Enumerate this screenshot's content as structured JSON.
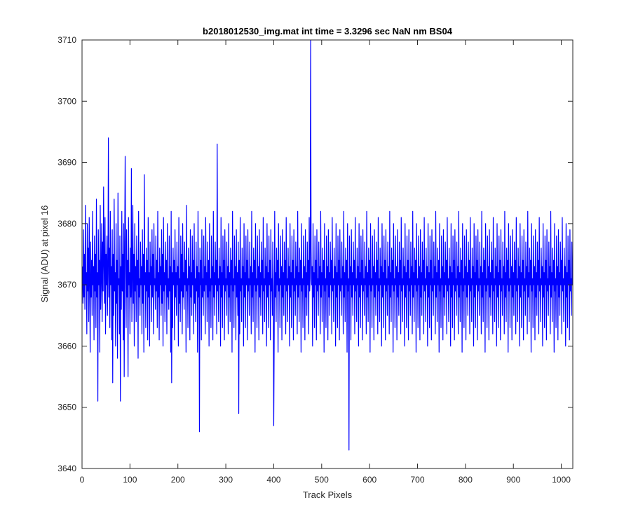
{
  "chart_data": {
    "type": "line",
    "title": "b2018012530_img.mat int time = 3.3296 sec  NaN nm BS04",
    "xlabel": "Track Pixels",
    "ylabel": "Signal (ADU) at pixel 16",
    "xlim": [
      0,
      1024
    ],
    "ylim": [
      3640,
      3710
    ],
    "x_ticks": [
      0,
      100,
      200,
      300,
      400,
      500,
      600,
      700,
      800,
      900,
      1000
    ],
    "y_ticks": [
      3640,
      3650,
      3660,
      3670,
      3680,
      3690,
      3700,
      3710
    ],
    "grid": false,
    "legend": "none",
    "series_color": "#0000ff",
    "series": [
      {
        "x_start": 1,
        "x_step": 1,
        "values": [
          3673,
          3667,
          3679,
          3668,
          3675,
          3666,
          3683,
          3670,
          3672,
          3662,
          3680,
          3669,
          3676,
          3664,
          3681,
          3671,
          3659,
          3677,
          3668,
          3674,
          3665,
          3682,
          3670,
          3673,
          3661,
          3678,
          3669,
          3675,
          3663,
          3684,
          3668,
          3672,
          3651,
          3679,
          3670,
          3674,
          3659,
          3683,
          3666,
          3671,
          3680,
          3664,
          3677,
          3669,
          3686,
          3673,
          3667,
          3681,
          3662,
          3675,
          3670,
          3678,
          3665,
          3672,
          3694,
          3668,
          3676,
          3663,
          3682,
          3670,
          3673,
          3661,
          3679,
          3654,
          3675,
          3665,
          3684,
          3669,
          3672,
          3660,
          3680,
          3667,
          3674,
          3658,
          3685,
          3670,
          3671,
          3662,
          3678,
          3651,
          3673,
          3666,
          3682,
          3669,
          3675,
          3661,
          3680,
          3655,
          3677,
          3691,
          3672,
          3663,
          3679,
          3668,
          3674,
          3655,
          3681,
          3670,
          3672,
          3662,
          3676,
          3668,
          3689,
          3664,
          3671,
          3683,
          3667,
          3675,
          3660,
          3680,
          3669,
          3673,
          3664,
          3678,
          3670,
          3674,
          3658,
          3682,
          3668,
          3671,
          3665,
          3677,
          3670,
          3673,
          3662,
          3679,
          3667,
          3675,
          3659,
          3688,
          3670,
          3672,
          3663,
          3676,
          3669,
          3674,
          3661,
          3681,
          3668,
          3672,
          3660,
          3677,
          3670,
          3673,
          3664,
          3679,
          3668,
          3675,
          3662,
          3680,
          3670,
          3671,
          3666,
          3678,
          3669,
          3674,
          3663,
          3682,
          3668,
          3672,
          3661,
          3676,
          3670,
          3673,
          3665,
          3679,
          3667,
          3675,
          3660,
          3681,
          3669,
          3672,
          3664,
          3677,
          3670,
          3674,
          3662,
          3680,
          3668,
          3671,
          3666,
          3678,
          3669,
          3673,
          3659,
          3682,
          3654,
          3672,
          3663,
          3676,
          3670,
          3674,
          3661,
          3679,
          3668,
          3672,
          3665,
          3677,
          3670,
          3673,
          3660,
          3681,
          3667,
          3671,
          3664,
          3678,
          3669,
          3675,
          3662,
          3680,
          3668,
          3672,
          3666,
          3677,
          3670,
          3674,
          3659,
          3683,
          3669,
          3671,
          3663,
          3676,
          3670,
          3673,
          3661,
          3679,
          3668,
          3672,
          3665,
          3678,
          3670,
          3674,
          3662,
          3680,
          3667,
          3671,
          3664,
          3677,
          3669,
          3673,
          3659,
          3682,
          3668,
          3672,
          3646,
          3676,
          3670,
          3674,
          3661,
          3679,
          3668,
          3671,
          3665,
          3678,
          3669,
          3673,
          3662,
          3681,
          3670,
          3672,
          3664,
          3677,
          3668,
          3674,
          3660,
          3680,
          3669,
          3671,
          3663,
          3678,
          3670,
          3673,
          3661,
          3682,
          3668,
          3672,
          3665,
          3677,
          3670,
          3674,
          3662,
          3693,
          3669,
          3671,
          3664,
          3676,
          3670,
          3673,
          3660,
          3681,
          3668,
          3672,
          3663,
          3678,
          3670,
          3674,
          3661,
          3679,
          3669,
          3671,
          3665,
          3677,
          3670,
          3673,
          3662,
          3680,
          3668,
          3672,
          3664,
          3676,
          3670,
          3674,
          3659,
          3682,
          3669,
          3671,
          3663,
          3678,
          3670,
          3673,
          3661,
          3679,
          3668,
          3672,
          3665,
          3677,
          3649,
          3674,
          3662,
          3681,
          3669,
          3671,
          3664,
          3676,
          3670,
          3673,
          3660,
          3680,
          3668,
          3672,
          3663,
          3678,
          3670,
          3674,
          3661,
          3679,
          3669,
          3671,
          3665,
          3677,
          3670,
          3673,
          3662,
          3682,
          3668,
          3672,
          3664,
          3676,
          3670,
          3674,
          3659,
          3680,
          3669,
          3671,
          3663,
          3678,
          3670,
          3673,
          3661,
          3679,
          3668,
          3672,
          3665,
          3677,
          3670,
          3674,
          3662,
          3681,
          3669,
          3671,
          3664,
          3676,
          3670,
          3673,
          3660,
          3680,
          3668,
          3672,
          3663,
          3678,
          3670,
          3674,
          3661,
          3679,
          3669,
          3671,
          3665,
          3677,
          3670,
          3647,
          3662,
          3682,
          3668,
          3672,
          3664,
          3676,
          3670,
          3674,
          3659,
          3680,
          3669,
          3671,
          3663,
          3678,
          3670,
          3673,
          3661,
          3679,
          3668,
          3672,
          3665,
          3677,
          3670,
          3674,
          3662,
          3681,
          3669,
          3671,
          3664,
          3676,
          3670,
          3673,
          3660,
          3680,
          3668,
          3672,
          3663,
          3678,
          3670,
          3674,
          3661,
          3679,
          3669,
          3671,
          3665,
          3677,
          3670,
          3673,
          3662,
          3682,
          3668,
          3672,
          3664,
          3676,
          3670,
          3674,
          3659,
          3680,
          3669,
          3671,
          3663,
          3678,
          3670,
          3673,
          3661,
          3679,
          3668,
          3672,
          3665,
          3677,
          3670,
          3674,
          3662,
          3681,
          3669,
          3671,
          3710,
          3676,
          3670,
          3673,
          3660,
          3680,
          3668,
          3672,
          3663,
          3678,
          3670,
          3674,
          3661,
          3679,
          3669,
          3671,
          3665,
          3677,
          3670,
          3673,
          3662,
          3682,
          3668,
          3672,
          3664,
          3676,
          3670,
          3674,
          3659,
          3680,
          3669,
          3671,
          3663,
          3678,
          3670,
          3673,
          3661,
          3679,
          3668,
          3672,
          3665,
          3677,
          3670,
          3674,
          3662,
          3681,
          3669,
          3671,
          3664,
          3676,
          3670,
          3673,
          3660,
          3680,
          3668,
          3672,
          3663,
          3678,
          3670,
          3674,
          3661,
          3679,
          3669,
          3671,
          3665,
          3677,
          3670,
          3673,
          3662,
          3682,
          3668,
          3672,
          3664,
          3676,
          3670,
          3674,
          3659,
          3680,
          3669,
          3671,
          3643,
          3678,
          3670,
          3673,
          3661,
          3679,
          3668,
          3672,
          3665,
          3677,
          3670,
          3674,
          3662,
          3681,
          3669,
          3671,
          3664,
          3676,
          3670,
          3673,
          3660,
          3680,
          3668,
          3672,
          3663,
          3678,
          3670,
          3674,
          3661,
          3679,
          3669,
          3671,
          3665,
          3677,
          3670,
          3673,
          3662,
          3682,
          3668,
          3672,
          3664,
          3676,
          3670,
          3674,
          3659,
          3680,
          3669,
          3671,
          3663,
          3678,
          3670,
          3673,
          3661,
          3679,
          3668,
          3672,
          3665,
          3677,
          3670,
          3674,
          3662,
          3681,
          3669,
          3671,
          3664,
          3676,
          3670,
          3673,
          3660,
          3680,
          3668,
          3672,
          3663,
          3678,
          3670,
          3674,
          3661,
          3679,
          3669,
          3671,
          3665,
          3677,
          3670,
          3673,
          3662,
          3682,
          3668,
          3672,
          3664,
          3676,
          3670,
          3674,
          3659,
          3680,
          3669,
          3671,
          3663,
          3678,
          3670,
          3673,
          3661,
          3679,
          3668,
          3672,
          3665,
          3677,
          3670,
          3674,
          3662,
          3681,
          3669,
          3671,
          3664,
          3676,
          3670,
          3673,
          3660,
          3680,
          3668,
          3672,
          3663,
          3678,
          3670,
          3674,
          3661,
          3679,
          3669,
          3671,
          3665,
          3677,
          3670,
          3673,
          3662,
          3682,
          3668,
          3672,
          3664,
          3676,
          3670,
          3674,
          3659,
          3680,
          3669,
          3671,
          3663,
          3678,
          3670,
          3673,
          3661,
          3679,
          3668,
          3672,
          3665,
          3677,
          3670,
          3674,
          3662,
          3681,
          3669,
          3671,
          3664,
          3676,
          3670,
          3673,
          3660,
          3680,
          3668,
          3672,
          3663,
          3678,
          3670,
          3674,
          3661,
          3679,
          3669,
          3671,
          3665,
          3677,
          3670,
          3673,
          3662,
          3682,
          3668,
          3672,
          3664,
          3676,
          3670,
          3674,
          3659,
          3680,
          3669,
          3671,
          3663,
          3678,
          3670,
          3673,
          3661,
          3679,
          3668,
          3672,
          3665,
          3677,
          3670,
          3674,
          3662,
          3681,
          3669,
          3671,
          3664,
          3676,
          3670,
          3673,
          3660,
          3680,
          3668,
          3672,
          3663,
          3678,
          3670,
          3674,
          3661,
          3679,
          3669,
          3671,
          3665,
          3677,
          3670,
          3673,
          3662,
          3682,
          3668,
          3672,
          3664,
          3676,
          3670,
          3674,
          3659,
          3680,
          3669,
          3671,
          3663,
          3678,
          3670,
          3673,
          3661,
          3679,
          3668,
          3672,
          3665,
          3677,
          3670,
          3674,
          3662,
          3681,
          3669,
          3671,
          3664,
          3676,
          3670,
          3673,
          3660,
          3680,
          3668,
          3672,
          3663,
          3678,
          3670,
          3674,
          3661,
          3679,
          3669,
          3671,
          3665,
          3677,
          3670,
          3673,
          3662,
          3682,
          3668,
          3672,
          3664,
          3676,
          3670,
          3674,
          3659,
          3680,
          3669,
          3671,
          3663,
          3678,
          3670,
          3673,
          3661,
          3679,
          3668,
          3672,
          3665,
          3677,
          3670,
          3674,
          3662,
          3681,
          3669,
          3671,
          3664,
          3676,
          3670,
          3673,
          3660,
          3680,
          3668,
          3672,
          3663,
          3678,
          3670,
          3674,
          3661,
          3679,
          3669,
          3671,
          3665,
          3677,
          3670,
          3673,
          3662,
          3682,
          3668,
          3672,
          3664,
          3676,
          3670,
          3674,
          3659,
          3680,
          3669,
          3671,
          3663,
          3678,
          3670,
          3673,
          3661,
          3679,
          3668,
          3672,
          3665,
          3677,
          3670,
          3674,
          3662,
          3681,
          3669,
          3671,
          3664,
          3676,
          3670,
          3673,
          3660,
          3680,
          3668,
          3672,
          3663,
          3678,
          3670,
          3674,
          3661,
          3679,
          3669,
          3671,
          3665,
          3677,
          3670,
          3673,
          3662,
          3682,
          3668,
          3672,
          3664,
          3676,
          3670,
          3674,
          3659,
          3680,
          3669,
          3671,
          3663,
          3678,
          3670,
          3673,
          3661,
          3679,
          3668,
          3672,
          3665,
          3677,
          3670,
          3674,
          3662,
          3681,
          3669,
          3671,
          3664,
          3676,
          3670,
          3673,
          3660,
          3680,
          3668,
          3672,
          3663,
          3678,
          3670,
          3674,
          3661,
          3679,
          3669,
          3671,
          3665,
          3677,
          3670,
          3673,
          3662,
          3682,
          3668,
          3672,
          3664,
          3676,
          3670,
          3674,
          3659,
          3680,
          3669,
          3671,
          3663,
          3678,
          3670,
          3673,
          3661,
          3679,
          3668,
          3672,
          3665,
          3677,
          3670,
          3674,
          3662,
          3681,
          3669,
          3671,
          3664,
          3676,
          3670,
          3673,
          3660,
          3680,
          3668,
          3672,
          3663,
          3678,
          3670,
          3674,
          3661,
          3679,
          3669,
          3671,
          3665,
          3677,
          3670,
          3673,
          3662,
          3682,
          3668,
          3672,
          3664,
          3676,
          3670,
          3674,
          3659,
          3680,
          3669,
          3671,
          3663,
          3678,
          3670,
          3673,
          3661,
          3679,
          3668,
          3672,
          3665,
          3677,
          3670,
          3674
        ]
      }
    ]
  }
}
